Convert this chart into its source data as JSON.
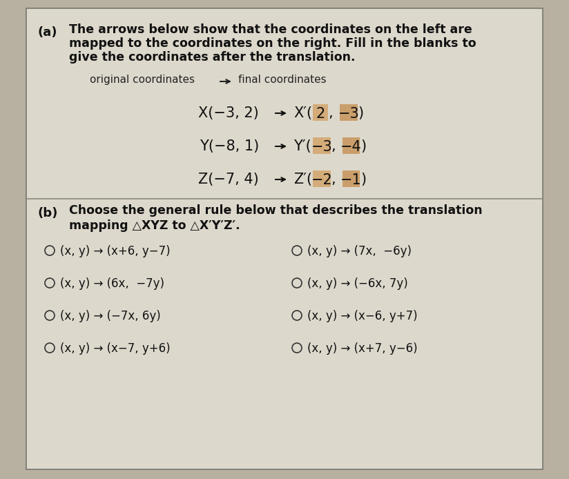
{
  "bg_color": "#b8b0a0",
  "panel_color": "#ddd8cc",
  "highlight1_color": "#d4a870",
  "highlight2_color": "#c89860",
  "divider_color": "#888880",
  "part_a_label": "(a)",
  "part_a_text_line1": "The arrows below show that the coordinates on the left are",
  "part_a_text_line2": "mapped to the coordinates on the right. Fill in the blanks to",
  "part_a_text_line3": "give the coordinates after the translation.",
  "orig_label": "original coordinates",
  "final_label": "final coordinates",
  "rows": [
    {
      "left": "X(−3, 2)",
      "prefix": "X′(",
      "v1": "2",
      "v2": "−3",
      "suffix": ")"
    },
    {
      "left": "Y(−8, 1)",
      "prefix": "Y′(",
      "v1": "−3",
      "v2": "−4",
      "suffix": ")"
    },
    {
      "left": "Z(−7, 4)",
      "prefix": "Z′(",
      "v1": "−2",
      "v2": "−1",
      "suffix": ")"
    }
  ],
  "part_b_label": "(b)",
  "part_b_text_line1": "Choose the general rule below that describes the translation",
  "part_b_text_line2": "mapping △XYZ to △X′Y′Z′.",
  "choices_left": [
    "(x, y) → (x+6, y−7)",
    "(x, y) → (6x,  −7y)",
    "(x, y) → (−7x, 6y)",
    "(x, y) → (x−7, y+6)"
  ],
  "choices_right": [
    "(x, y) → (7x,  −6y)",
    "(x, y) → (−6x, 7y)",
    "(x, y) → (x−6, y+7)",
    "(x, y) → (x+7, y−6)"
  ],
  "fig_w": 8.24,
  "fig_h": 6.94,
  "dpi": 100
}
